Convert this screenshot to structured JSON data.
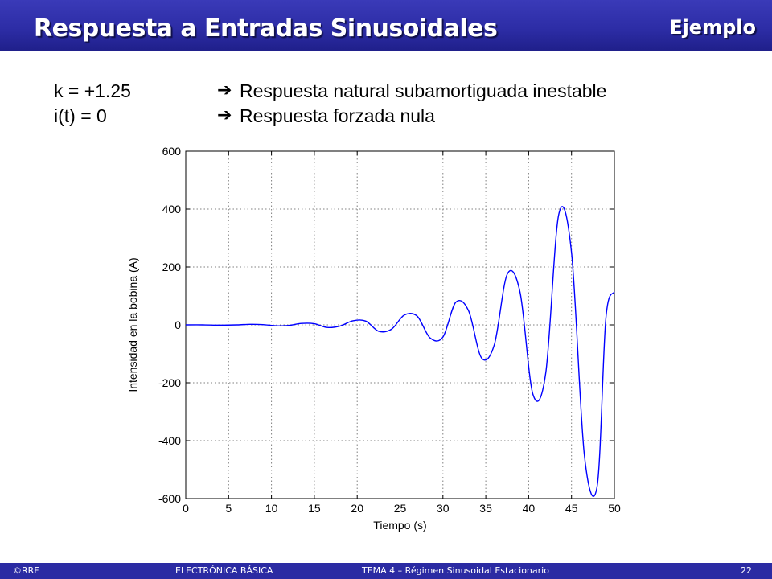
{
  "header": {
    "title": "Respuesta a Entradas Sinusoidales",
    "tag": "Ejemplo"
  },
  "body_text": {
    "line1_left": "k = +1.25",
    "line1_right": "Respuesta natural subamortiguada inestable",
    "line2_left": "i(t) = 0",
    "line2_right": "Respuesta forzada nula",
    "arrow_icon": "arrow-right-icon"
  },
  "chart_data": {
    "type": "line",
    "title": "",
    "xlabel": "Tiempo (s)",
    "ylabel": "Intensidad en la bobina (A)",
    "xlim": [
      0,
      50
    ],
    "ylim": [
      -600,
      600
    ],
    "xticks": [
      "0",
      "5",
      "10",
      "15",
      "20",
      "25",
      "30",
      "35",
      "40",
      "45",
      "50"
    ],
    "yticks": [
      "600",
      "400",
      "200",
      "0",
      "-200",
      "-400",
      "-600"
    ],
    "grid": true,
    "line_color": "#0000ff",
    "series": [
      {
        "x": [
          0,
          2,
          4,
          6,
          7.5,
          9,
          10.5,
          12,
          13.5,
          15,
          16.5,
          18,
          19.5,
          21,
          22.5,
          24,
          25.5,
          27,
          28.5,
          30,
          31.5,
          33,
          34.5,
          36,
          37.5,
          39,
          40.5,
          42,
          43.5,
          45,
          46.5,
          48,
          49,
          50
        ],
        "y": [
          0,
          0,
          -1,
          0,
          2,
          1,
          -3,
          -2,
          5,
          4,
          -9,
          -4,
          14,
          13,
          -22,
          -15,
          34,
          30,
          -45,
          -42,
          78,
          48,
          -114,
          -68,
          175,
          112,
          -240,
          -165,
          380,
          250,
          -450,
          -555,
          20,
          115
        ]
      }
    ]
  },
  "footer": {
    "left": "©RRF",
    "center": "ELECTRÓNICA BÁSICA",
    "right": "TEMA 4 – Régimen Sinusoidal Estacionario",
    "page": "22"
  }
}
